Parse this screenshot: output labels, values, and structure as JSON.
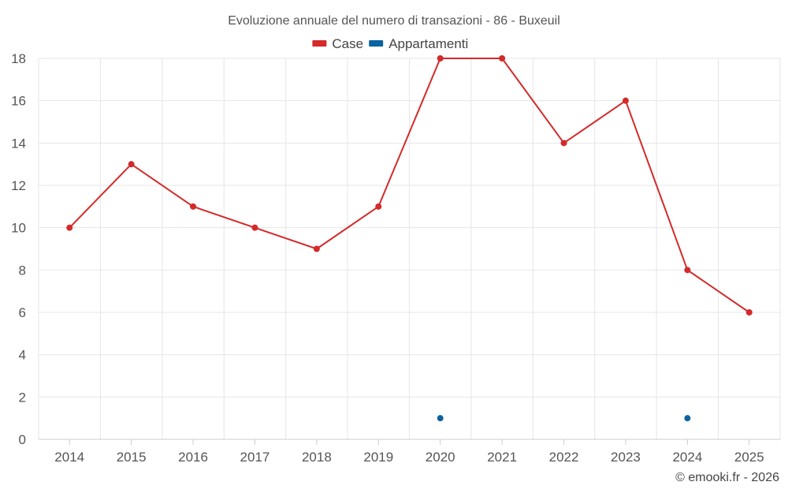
{
  "chart_data": {
    "type": "line",
    "title": "Evoluzione annuale del numero di transazioni - 86 - Buxeuil",
    "x": [
      "2014",
      "2015",
      "2016",
      "2017",
      "2018",
      "2019",
      "2020",
      "2021",
      "2022",
      "2023",
      "2024",
      "2025"
    ],
    "series": [
      {
        "name": "Case",
        "color": "#d42a2a",
        "values": [
          10,
          13,
          11,
          10,
          9,
          11,
          18,
          18,
          14,
          16,
          8,
          6
        ]
      },
      {
        "name": "Appartamenti",
        "color": "#0d62a0",
        "values": [
          null,
          null,
          null,
          null,
          null,
          null,
          1,
          null,
          null,
          null,
          1,
          null
        ]
      }
    ],
    "ylim": [
      0,
      18
    ],
    "yticks": [
      0,
      2,
      4,
      6,
      8,
      10,
      12,
      14,
      16,
      18
    ],
    "grid": true,
    "legend_position": "top-center"
  },
  "credit": "© emooki.fr - 2026"
}
